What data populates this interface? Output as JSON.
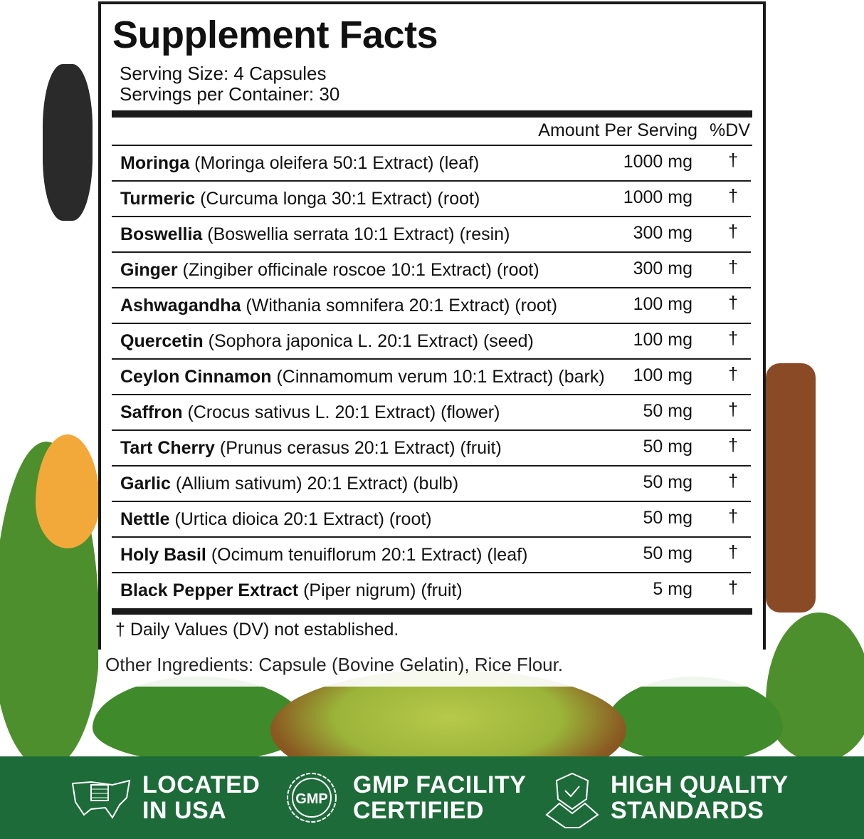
{
  "label": {
    "title": "Supplement Facts",
    "serving_size": "Serving Size: 4 Capsules",
    "servings_per_container": "Servings per Container: 30",
    "col_amount": "Amount Per Serving",
    "col_dv": "%DV",
    "rows": [
      {
        "name": "Moringa",
        "detail": " (Moringa oleifera 50:1 Extract) (leaf)",
        "amount": "1000 mg",
        "dv": "†"
      },
      {
        "name": "Turmeric",
        "detail": " (Curcuma longa 30:1 Extract) (root)",
        "amount": "1000 mg",
        "dv": "†"
      },
      {
        "name": "Boswellia",
        "detail": " (Boswellia serrata 10:1 Extract) (resin)",
        "amount": "300 mg",
        "dv": "†"
      },
      {
        "name": "Ginger",
        "detail": " (Zingiber officinale roscoe 10:1 Extract) (root)",
        "amount": "300 mg",
        "dv": "†"
      },
      {
        "name": "Ashwagandha",
        "detail": " (Withania somnifera 20:1 Extract) (root)",
        "amount": "100 mg",
        "dv": "†"
      },
      {
        "name": "Quercetin",
        "detail": " (Sophora japonica L. 20:1 Extract) (seed)",
        "amount": "100 mg",
        "dv": "†"
      },
      {
        "name": "Ceylon Cinnamon",
        "detail": " (Cinnamomum verum 10:1 Extract) (bark)",
        "amount": "100 mg",
        "dv": "†"
      },
      {
        "name": "Saffron",
        "detail": " (Crocus sativus L. 20:1 Extract) (flower)",
        "amount": "50 mg",
        "dv": "†"
      },
      {
        "name": "Tart Cherry",
        "detail": " (Prunus cerasus 20:1 Extract) (fruit)",
        "amount": "50 mg",
        "dv": "†"
      },
      {
        "name": "Garlic",
        "detail": " (Allium sativum) 20:1 Extract) (bulb)",
        "amount": "50 mg",
        "dv": "†"
      },
      {
        "name": "Nettle",
        "detail": " (Urtica dioica 20:1 Extract) (root)",
        "amount": "50 mg",
        "dv": "†"
      },
      {
        "name": "Holy Basil",
        "detail": " (Ocimum tenuiflorum 20:1 Extract) (leaf)",
        "amount": "50 mg",
        "dv": "†"
      },
      {
        "name": "Black Pepper Extract",
        "detail": " (Piper nigrum) (fruit)",
        "amount": "5 mg",
        "dv": "†"
      }
    ],
    "footnote": "† Daily Values (DV) not established.",
    "other_ingredients": "Other Ingredients: Capsule (Bovine Gelatin), Rice Flour."
  },
  "banner": {
    "color": "#1e6b3a",
    "badges": [
      {
        "icon": "usa-map-flag-icon",
        "line1": "LOCATED",
        "line2": "IN USA"
      },
      {
        "icon": "gmp-seal-icon",
        "icon_text": "GMP",
        "line1": "GMP FACILITY",
        "line2": "CERTIFIED"
      },
      {
        "icon": "shield-handshake-icon",
        "line1": "HIGH QUALITY",
        "line2": "STANDARDS"
      }
    ]
  }
}
